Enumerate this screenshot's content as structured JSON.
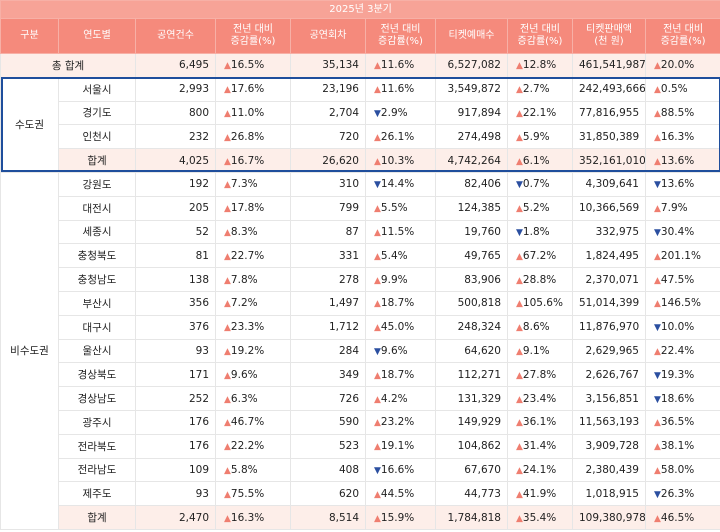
{
  "table": {
    "period": "2025년 3분기",
    "headers": [
      "구분",
      "연도별",
      "공연건수",
      "전년 대비\n증감률(%)",
      "공연회차",
      "전년 대비\n증감률(%)",
      "티켓예매수",
      "전년 대비\n증감률(%)",
      "티켓판매액\n(천 원)",
      "전년 대비\n증감률(%)"
    ],
    "grand_total": {
      "label": "총 합계",
      "values": [
        "6,495",
        "▲16.5%",
        "35,134",
        "▲11.6%",
        "6,527,082",
        "▲12.8%",
        "461,541,987",
        "▲20.0%"
      ]
    },
    "groups": [
      {
        "label": "수도권",
        "rows": [
          {
            "label": "서울시",
            "values": [
              "2,993",
              "▲17.6%",
              "23,196",
              "▲11.6%",
              "3,549,872",
              "▲2.7%",
              "242,493,666",
              "▲0.5%"
            ]
          },
          {
            "label": "경기도",
            "values": [
              "800",
              "▲11.0%",
              "2,704",
              "▼2.9%",
              "917,894",
              "▲22.1%",
              "77,816,955",
              "▲88.5%"
            ]
          },
          {
            "label": "인천시",
            "values": [
              "232",
              "▲26.8%",
              "720",
              "▲26.1%",
              "274,498",
              "▲5.9%",
              "31,850,389",
              "▲16.3%"
            ]
          },
          {
            "label": "합계",
            "values": [
              "4,025",
              "▲16.7%",
              "26,620",
              "▲10.3%",
              "4,742,264",
              "▲6.1%",
              "352,161,010",
              "▲13.6%"
            ]
          }
        ]
      },
      {
        "label": "비수도권",
        "rows": [
          {
            "label": "강원도",
            "values": [
              "192",
              "▲7.3%",
              "310",
              "▼14.4%",
              "82,406",
              "▼0.7%",
              "4,309,641",
              "▼13.6%"
            ]
          },
          {
            "label": "대전시",
            "values": [
              "205",
              "▲17.8%",
              "799",
              "▲5.5%",
              "124,385",
              "▲5.2%",
              "10,366,569",
              "▲7.9%"
            ]
          },
          {
            "label": "세종시",
            "values": [
              "52",
              "▲8.3%",
              "87",
              "▲11.5%",
              "19,760",
              "▼1.8%",
              "332,975",
              "▼30.4%"
            ]
          },
          {
            "label": "충청북도",
            "values": [
              "81",
              "▲22.7%",
              "331",
              "▲5.4%",
              "49,765",
              "▲67.2%",
              "1,824,495",
              "▲201.1%"
            ]
          },
          {
            "label": "충청남도",
            "values": [
              "138",
              "▲7.8%",
              "278",
              "▲9.9%",
              "83,906",
              "▲28.8%",
              "2,370,071",
              "▲47.5%"
            ]
          },
          {
            "label": "부산시",
            "values": [
              "356",
              "▲7.2%",
              "1,497",
              "▲18.7%",
              "500,818",
              "▲105.6%",
              "51,014,399",
              "▲146.5%"
            ]
          },
          {
            "label": "대구시",
            "values": [
              "376",
              "▲23.3%",
              "1,712",
              "▲45.0%",
              "248,324",
              "▲8.6%",
              "11,876,970",
              "▼10.0%"
            ]
          },
          {
            "label": "울산시",
            "values": [
              "93",
              "▲19.2%",
              "284",
              "▼9.6%",
              "64,620",
              "▲9.1%",
              "2,629,965",
              "▲22.4%"
            ]
          },
          {
            "label": "경상북도",
            "values": [
              "171",
              "▲9.6%",
              "349",
              "▲18.7%",
              "112,271",
              "▲27.8%",
              "2,626,767",
              "▼19.3%"
            ]
          },
          {
            "label": "경상남도",
            "values": [
              "252",
              "▲6.3%",
              "726",
              "▲4.2%",
              "131,329",
              "▲23.4%",
              "3,156,851",
              "▼18.6%"
            ]
          },
          {
            "label": "광주시",
            "values": [
              "176",
              "▲46.7%",
              "590",
              "▲23.2%",
              "149,929",
              "▲36.1%",
              "11,563,193",
              "▲36.5%"
            ]
          },
          {
            "label": "전라북도",
            "values": [
              "176",
              "▲22.2%",
              "523",
              "▲19.1%",
              "104,862",
              "▲31.4%",
              "3,909,728",
              "▲38.1%"
            ]
          },
          {
            "label": "전라남도",
            "values": [
              "109",
              "▲5.8%",
              "408",
              "▼16.6%",
              "67,670",
              "▲24.1%",
              "2,380,439",
              "▲58.0%"
            ]
          },
          {
            "label": "제주도",
            "values": [
              "93",
              "▲75.5%",
              "620",
              "▲44.5%",
              "44,773",
              "▲41.9%",
              "1,018,915",
              "▼26.3%"
            ]
          },
          {
            "label": "합계",
            "values": [
              "2,470",
              "▲16.3%",
              "8,514",
              "▲15.9%",
              "1,784,818",
              "▲35.4%",
              "109,380,978",
              "▲46.5%"
            ]
          }
        ]
      }
    ]
  }
}
